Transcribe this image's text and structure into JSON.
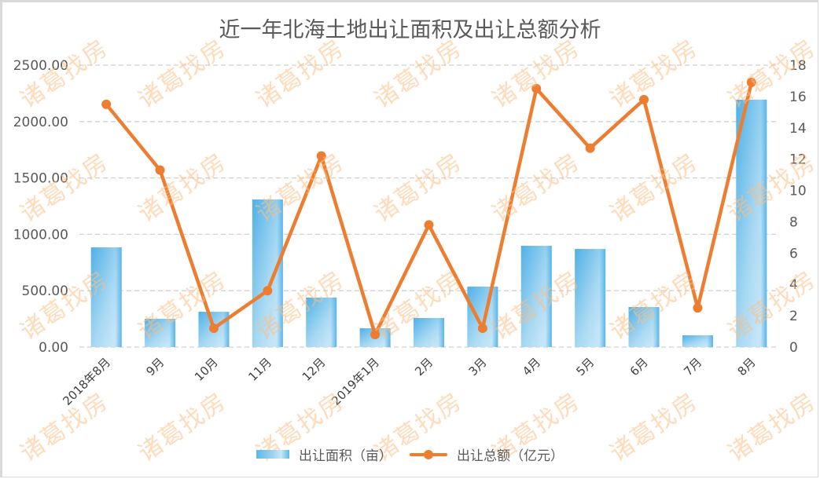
{
  "chart_data": {
    "type": "bar+line",
    "title": "近一年北海土地出让面积及出让总额分析",
    "categories": [
      "2018年8月",
      "9月",
      "10月",
      "11月",
      "12月",
      "2019年1月",
      "2月",
      "3月",
      "4月",
      "5月",
      "6月",
      "7月",
      "8月"
    ],
    "series": [
      {
        "name": "出让面积（亩）",
        "type": "bar",
        "axis": "left",
        "color": "#5db8e8",
        "values": [
          884,
          251,
          313,
          1309,
          439,
          167,
          258,
          536,
          898,
          870,
          355,
          104,
          2194
        ]
      },
      {
        "name": "出让总额（亿元）",
        "type": "line",
        "axis": "right",
        "color": "#ed7d31",
        "values": [
          15.5,
          11.3,
          1.2,
          3.6,
          12.2,
          0.8,
          7.8,
          1.2,
          16.5,
          12.7,
          15.8,
          2.5,
          16.9
        ]
      }
    ],
    "left_axis": {
      "ylim": [
        0,
        2500
      ],
      "ticks": [
        "0.00",
        "500.00",
        "1000.00",
        "1500.00",
        "2000.00",
        "2500.00"
      ]
    },
    "right_axis": {
      "ylim": [
        0,
        18
      ],
      "ticks": [
        "0",
        "2",
        "4",
        "6",
        "8",
        "10",
        "12",
        "14",
        "16",
        "18"
      ]
    },
    "xlabel": "",
    "ylabel": "",
    "grid": "horizontal dashed",
    "legend_position": "bottom"
  },
  "legend": {
    "bar_label": "出让面积（亩）",
    "line_label": "出让总额（亿元）"
  },
  "watermark": "诸葛找房"
}
